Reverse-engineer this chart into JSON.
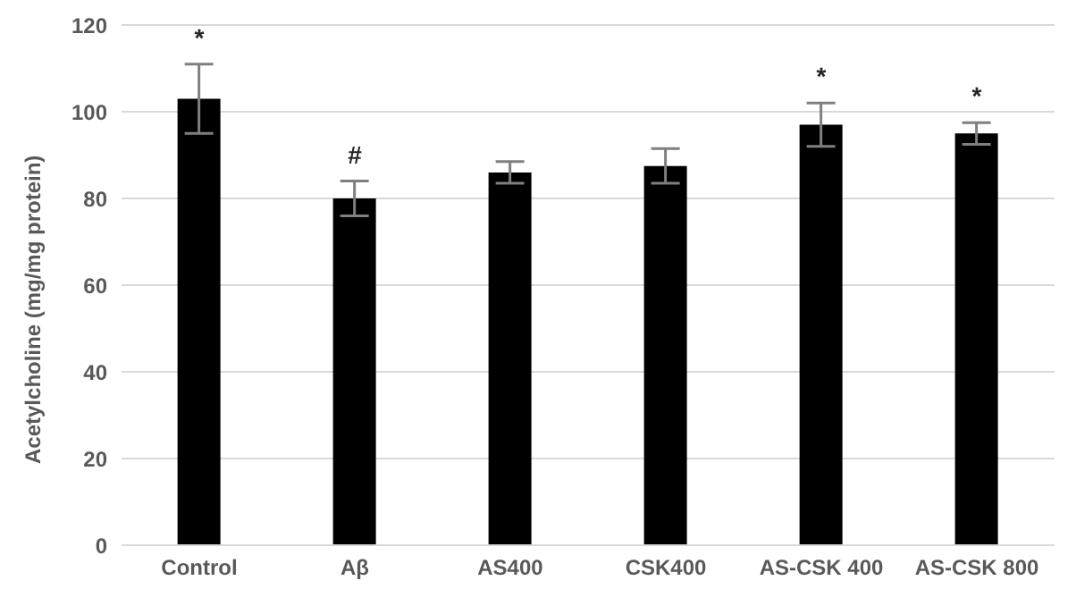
{
  "chart_data": {
    "type": "bar",
    "ylabel": "Acetylcholine  (mg/mg protein)",
    "categories": [
      "Control",
      "Aβ",
      "AS400",
      "CSK400",
      "AS-CSK 400",
      "AS-CSK 800"
    ],
    "values": [
      103,
      80,
      86,
      87.5,
      97,
      95
    ],
    "errors": [
      8,
      4,
      2.5,
      4,
      5,
      2.5
    ],
    "color": "#000000",
    "ylim": [
      0,
      120
    ],
    "yticks": [
      0,
      20,
      40,
      60,
      80,
      100,
      120
    ],
    "grid": "y",
    "annotations": [
      {
        "text": "*",
        "x": "Control",
        "y": 103
      },
      {
        "text": "#",
        "x": "Aβ",
        "y": 80
      },
      {
        "text": "*",
        "x": "AS-CSK 400",
        "y": 97
      },
      {
        "text": "*",
        "x": "AS-CSK 800",
        "y": 95
      }
    ]
  }
}
